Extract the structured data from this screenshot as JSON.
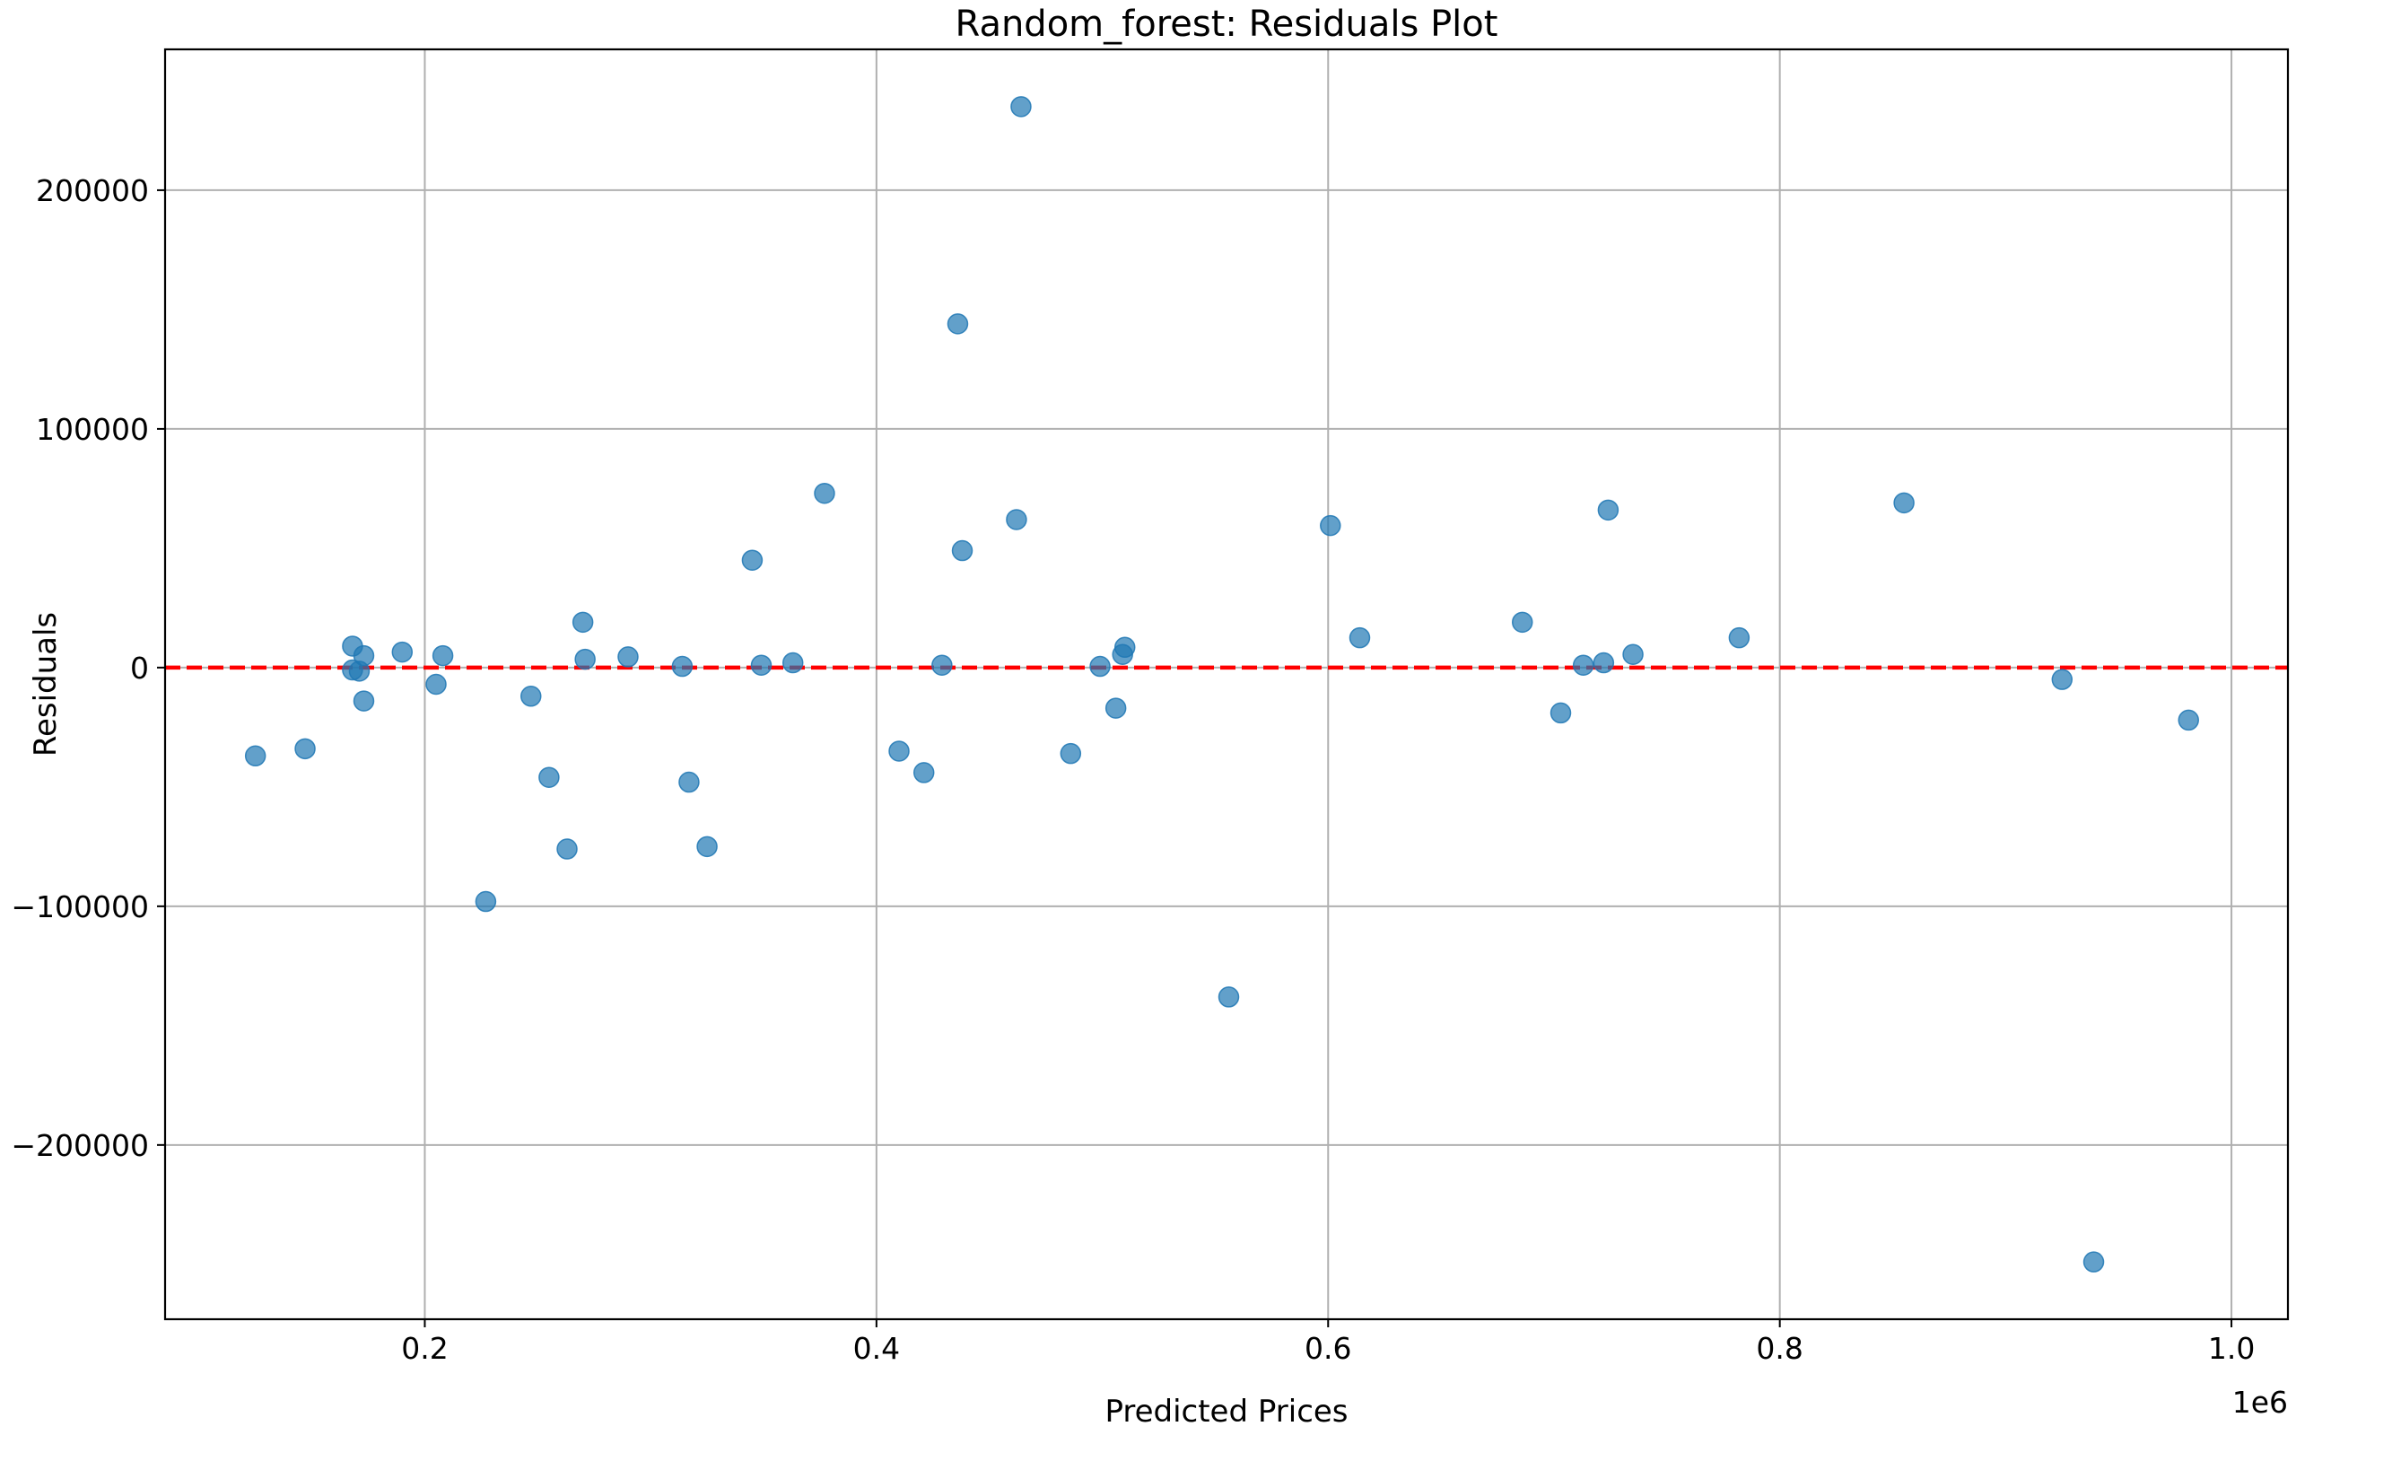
{
  "chart_data": {
    "type": "scatter",
    "title": "Random_forest: Residuals Plot",
    "xlabel": "Predicted Prices",
    "ylabel": "Residuals",
    "x_offset_label": "1e6",
    "x_scale": 1000000,
    "xlim": [
      85000,
      1025000
    ],
    "ylim": [
      -273000,
      259000
    ],
    "xticks": [
      200000,
      400000,
      600000,
      800000,
      1000000
    ],
    "xtick_labels": [
      "0.2",
      "0.4",
      "0.6",
      "0.8",
      "1.0"
    ],
    "yticks": [
      -200000,
      -100000,
      0,
      100000,
      200000
    ],
    "ytick_labels": [
      "−200000",
      "−100000",
      "0",
      "100000",
      "200000"
    ],
    "grid": true,
    "reference_line": {
      "y": 0,
      "color": "#ff0000",
      "style": "dashed"
    },
    "point_color": "#1f77b4",
    "points": [
      {
        "x": 125000,
        "y": -37000
      },
      {
        "x": 147000,
        "y": -34000
      },
      {
        "x": 168000,
        "y": 9000
      },
      {
        "x": 168000,
        "y": -1000
      },
      {
        "x": 171000,
        "y": -1500
      },
      {
        "x": 173000,
        "y": 5000
      },
      {
        "x": 173000,
        "y": -14000
      },
      {
        "x": 190000,
        "y": 6500
      },
      {
        "x": 205000,
        "y": -7000
      },
      {
        "x": 208000,
        "y": 5000
      },
      {
        "x": 227000,
        "y": -98000
      },
      {
        "x": 247000,
        "y": -12000
      },
      {
        "x": 255000,
        "y": -46000
      },
      {
        "x": 263000,
        "y": -76000
      },
      {
        "x": 270000,
        "y": 19000
      },
      {
        "x": 271000,
        "y": 3500
      },
      {
        "x": 290000,
        "y": 4500
      },
      {
        "x": 314000,
        "y": 500
      },
      {
        "x": 317000,
        "y": -48000
      },
      {
        "x": 325000,
        "y": -75000
      },
      {
        "x": 345000,
        "y": 45000
      },
      {
        "x": 349000,
        "y": 1000
      },
      {
        "x": 363000,
        "y": 2000
      },
      {
        "x": 377000,
        "y": 73000
      },
      {
        "x": 410000,
        "y": -35000
      },
      {
        "x": 421000,
        "y": -44000
      },
      {
        "x": 429000,
        "y": 1000
      },
      {
        "x": 436000,
        "y": 144000
      },
      {
        "x": 438000,
        "y": 49000
      },
      {
        "x": 462000,
        "y": 62000
      },
      {
        "x": 464000,
        "y": 235000
      },
      {
        "x": 486000,
        "y": -36000
      },
      {
        "x": 499000,
        "y": 500
      },
      {
        "x": 506000,
        "y": -17000
      },
      {
        "x": 509000,
        "y": 5500
      },
      {
        "x": 510000,
        "y": 8500
      },
      {
        "x": 556000,
        "y": -138000
      },
      {
        "x": 601000,
        "y": 59500
      },
      {
        "x": 614000,
        "y": 12500
      },
      {
        "x": 686000,
        "y": 19000
      },
      {
        "x": 703000,
        "y": -19000
      },
      {
        "x": 713000,
        "y": 1000
      },
      {
        "x": 722000,
        "y": 2000
      },
      {
        "x": 724000,
        "y": 66000
      },
      {
        "x": 735000,
        "y": 5500
      },
      {
        "x": 782000,
        "y": 12500
      },
      {
        "x": 855000,
        "y": 69000
      },
      {
        "x": 925000,
        "y": -5000
      },
      {
        "x": 939000,
        "y": -249000
      },
      {
        "x": 981000,
        "y": -22000
      }
    ]
  }
}
